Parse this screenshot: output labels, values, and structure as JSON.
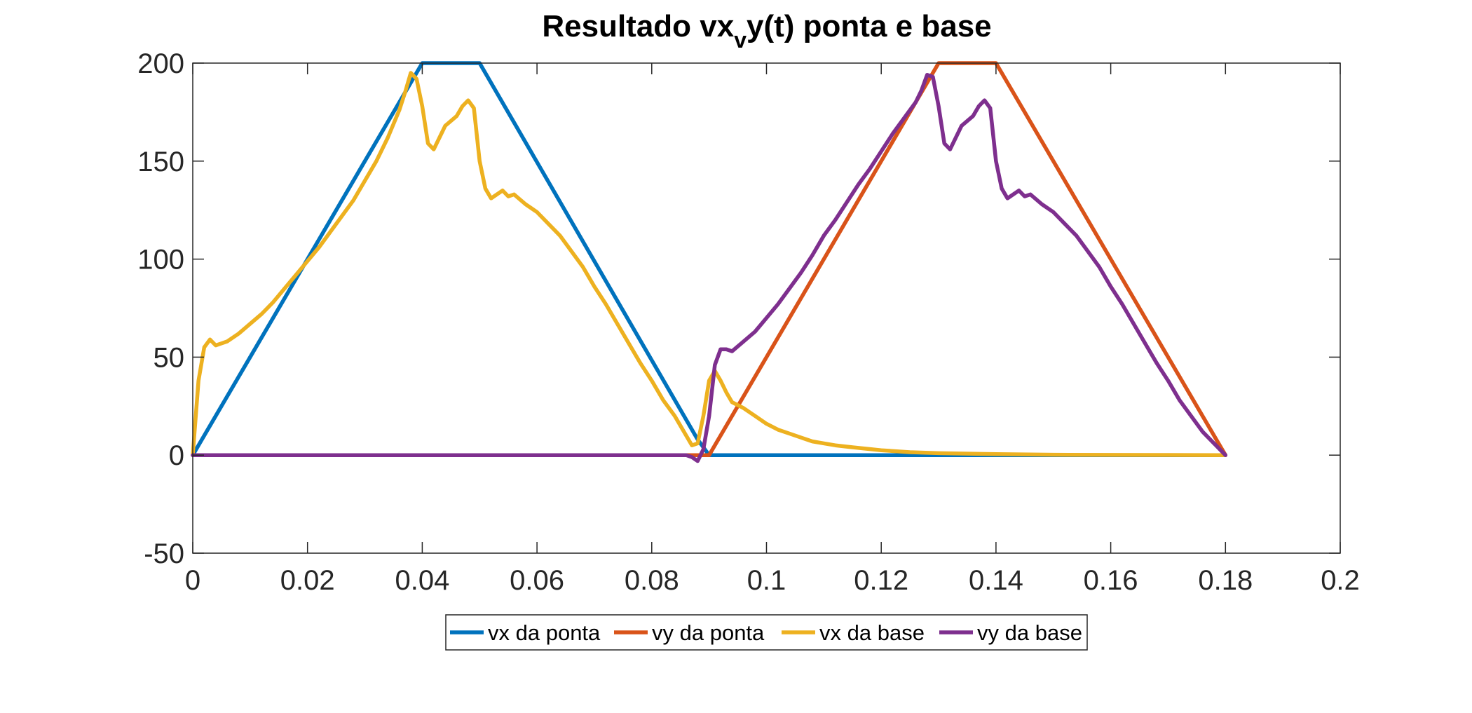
{
  "chart_data": {
    "type": "line",
    "title": {
      "prefix": "Resultado vx",
      "subscript": "v",
      "suffix": "y(t) ponta e base"
    },
    "xlabel": "",
    "ylabel": "",
    "xlim": [
      0,
      0.2
    ],
    "ylim": [
      -50,
      200
    ],
    "x_ticks": [
      0,
      0.02,
      0.04,
      0.06,
      0.08,
      0.1,
      0.12,
      0.14,
      0.16,
      0.18,
      0.2
    ],
    "x_tick_labels": [
      "0",
      "0.02",
      "0.04",
      "0.06",
      "0.08",
      "0.1",
      "0.12",
      "0.14",
      "0.16",
      "0.18",
      "0.2"
    ],
    "y_ticks": [
      -50,
      0,
      50,
      100,
      150,
      200
    ],
    "y_tick_labels": [
      "-50",
      "0",
      "50",
      "100",
      "150",
      "200"
    ],
    "grid": false,
    "box": true,
    "legend_position": "bottom-outside",
    "series": [
      {
        "name": "vx da ponta",
        "color": "#0072BD",
        "x": [
          0,
          0.04,
          0.05,
          0.088,
          0.09,
          0.18
        ],
        "y": [
          0,
          200,
          200,
          8,
          0,
          0
        ]
      },
      {
        "name": "vy da ponta",
        "color": "#D95319",
        "x": [
          0,
          0.09,
          0.13,
          0.14,
          0.18
        ],
        "y": [
          0,
          0,
          200,
          200,
          0
        ]
      },
      {
        "name": "vx da base",
        "color": "#EDB120",
        "x": [
          0,
          0.001,
          0.002,
          0.003,
          0.004,
          0.005,
          0.006,
          0.008,
          0.01,
          0.012,
          0.014,
          0.016,
          0.018,
          0.02,
          0.022,
          0.024,
          0.026,
          0.028,
          0.03,
          0.032,
          0.034,
          0.036,
          0.037,
          0.038,
          0.039,
          0.04,
          0.041,
          0.042,
          0.044,
          0.046,
          0.047,
          0.048,
          0.049,
          0.05,
          0.051,
          0.052,
          0.054,
          0.055,
          0.056,
          0.058,
          0.06,
          0.062,
          0.064,
          0.066,
          0.068,
          0.07,
          0.072,
          0.074,
          0.076,
          0.078,
          0.08,
          0.082,
          0.084,
          0.085,
          0.086,
          0.087,
          0.088,
          0.089,
          0.09,
          0.091,
          0.092,
          0.093,
          0.094,
          0.096,
          0.098,
          0.1,
          0.102,
          0.104,
          0.106,
          0.108,
          0.11,
          0.112,
          0.115,
          0.12,
          0.125,
          0.13,
          0.14,
          0.15,
          0.16,
          0.17,
          0.18
        ],
        "y": [
          0,
          38,
          55,
          59,
          56,
          57,
          58,
          62,
          67,
          72,
          78,
          85,
          92,
          99,
          106,
          114,
          122,
          130,
          140,
          150,
          162,
          176,
          185,
          195,
          192,
          178,
          159,
          156,
          168,
          173,
          178,
          181,
          177,
          150,
          136,
          131,
          135,
          132,
          133,
          128,
          124,
          118,
          112,
          104,
          96,
          86,
          77,
          67,
          57,
          47,
          38,
          28,
          20,
          15,
          10,
          5,
          6,
          20,
          38,
          43,
          38,
          32,
          27,
          24,
          20,
          16,
          13,
          11,
          9,
          7,
          6,
          5,
          4,
          2.5,
          1.5,
          1,
          0.5,
          0.2,
          0.1,
          0.05,
          0
        ],
        "note_x_for_first_peak": [
          0.037,
          0.039
        ]
      },
      {
        "name": "vy da base",
        "color": "#7E2F8E",
        "x": [
          0,
          0.01,
          0.02,
          0.03,
          0.04,
          0.05,
          0.06,
          0.07,
          0.08,
          0.085,
          0.086,
          0.087,
          0.088,
          0.089,
          0.09,
          0.091,
          0.092,
          0.093,
          0.094,
          0.096,
          0.098,
          0.1,
          0.102,
          0.104,
          0.106,
          0.108,
          0.11,
          0.112,
          0.114,
          0.116,
          0.118,
          0.12,
          0.122,
          0.124,
          0.126,
          0.127,
          0.128,
          0.129,
          0.13,
          0.131,
          0.132,
          0.134,
          0.136,
          0.137,
          0.138,
          0.139,
          0.14,
          0.141,
          0.142,
          0.144,
          0.145,
          0.146,
          0.148,
          0.15,
          0.152,
          0.154,
          0.156,
          0.158,
          0.16,
          0.162,
          0.164,
          0.166,
          0.168,
          0.17,
          0.172,
          0.174,
          0.176,
          0.178,
          0.18
        ],
        "y": [
          0,
          0,
          0,
          0,
          0,
          0,
          0,
          0,
          0,
          0,
          0,
          -1,
          -3,
          3,
          20,
          46,
          54,
          54,
          53,
          58,
          63,
          70,
          77,
          85,
          93,
          102,
          112,
          120,
          129,
          138,
          146,
          155,
          164,
          172,
          180,
          186,
          194,
          193,
          178,
          159,
          156,
          168,
          173,
          178,
          181,
          177,
          150,
          136,
          131,
          135,
          132,
          133,
          128,
          124,
          118,
          112,
          104,
          96,
          86,
          77,
          67,
          57,
          47,
          38,
          28,
          20,
          12,
          6,
          0
        ]
      }
    ]
  },
  "legend": {
    "items": [
      {
        "label": "vx da ponta",
        "color": "#0072BD"
      },
      {
        "label": "vy da ponta",
        "color": "#D95319"
      },
      {
        "label": "vx da base",
        "color": "#EDB120"
      },
      {
        "label": "vy da base",
        "color": "#7E2F8E"
      }
    ]
  }
}
